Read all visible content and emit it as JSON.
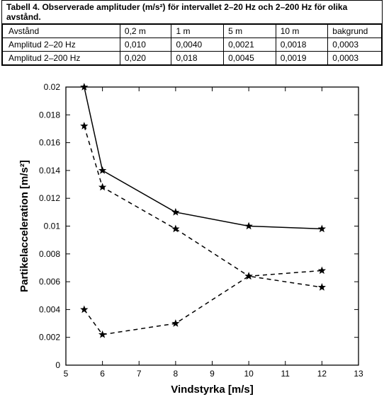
{
  "table": {
    "title": "Tabell 4. Observerade amplituder (m/s²) för intervallet 2–20 Hz och 2–200 Hz för olika avstånd.",
    "columns": [
      "Avstånd",
      "0,2 m",
      "1 m",
      "5 m",
      "10 m",
      "bakgrund"
    ],
    "rows": [
      [
        "Amplitud 2–20 Hz",
        "0,010",
        "0,0040",
        "0,0021",
        "0,0018",
        "0,0003"
      ],
      [
        "Amplitud 2–200 Hz",
        "0,020",
        "0,018",
        "0,0045",
        "0,0019",
        "0,0003"
      ]
    ]
  },
  "chart": {
    "type": "line",
    "xlabel": "Vindstyrka [m/s]",
    "ylabel": "Partikelacceleration [m/s²]",
    "label_fontsize": 15,
    "tick_fontsize": 12,
    "xlim": [
      5,
      13
    ],
    "ylim": [
      0,
      0.02
    ],
    "xtick_step": 1,
    "ytick_step": 0.002,
    "background_color": "#ffffff",
    "box_color": "#000000",
    "series": [
      {
        "style": "solid",
        "marker": "star",
        "color": "#000000",
        "x": [
          5.5,
          6,
          8,
          10,
          12
        ],
        "y": [
          0.02,
          0.014,
          0.011,
          0.01,
          0.0098
        ]
      },
      {
        "style": "dashed",
        "marker": "star",
        "color": "#000000",
        "x": [
          5.5,
          6,
          8,
          10,
          12
        ],
        "y": [
          0.0172,
          0.0128,
          0.0098,
          0.0064,
          0.0068
        ]
      },
      {
        "style": "dashed",
        "marker": "star",
        "color": "#000000",
        "x": [
          5.5,
          6,
          8,
          10,
          12
        ],
        "y": [
          0.004,
          0.0022,
          0.003,
          0.0064,
          0.0056
        ]
      }
    ]
  }
}
